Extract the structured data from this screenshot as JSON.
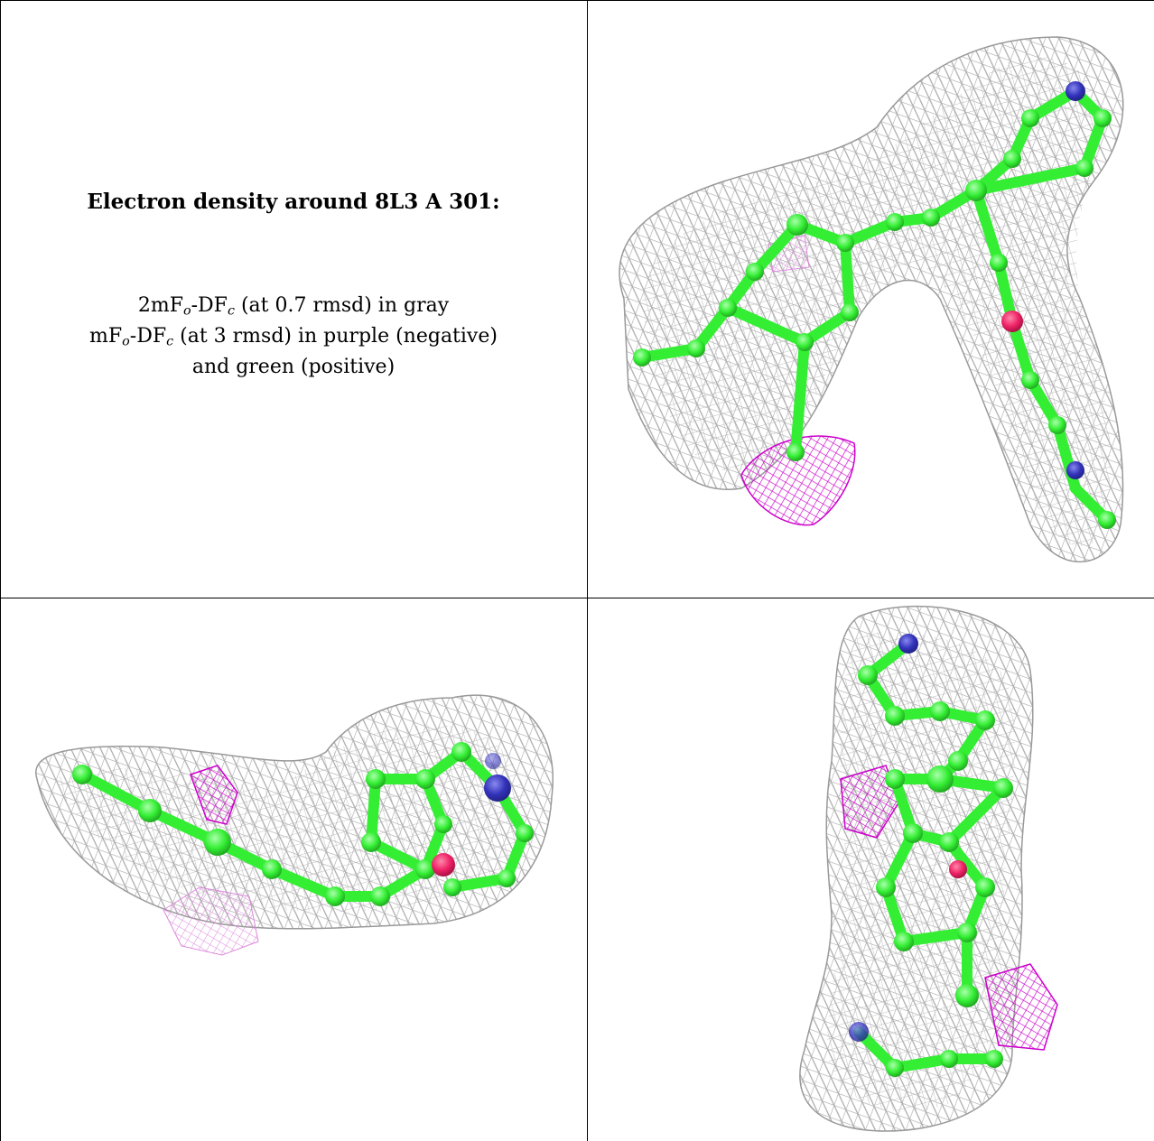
{
  "caption": {
    "title": "Electron density around 8L3 A 301:",
    "line1_main": "2mF",
    "line1_sub_o": "o",
    "line1_mid": "-DF",
    "line1_sub_c": "c",
    "line1_tail": " (at 0.7 rmsd) in gray",
    "line2_main": "mF",
    "line2_sub_o": "o",
    "line2_mid": "-DF",
    "line2_sub_c": "c",
    "line2_tail": " (at 3 rmsd) in purple (negative)",
    "line3": "and green (positive)"
  },
  "colors": {
    "mesh": "#a9a9a9",
    "negative_density": "#cc00cc",
    "carbon": "#33ee33",
    "nitrogen": "#3333bb",
    "oxygen": "#ee2266"
  }
}
